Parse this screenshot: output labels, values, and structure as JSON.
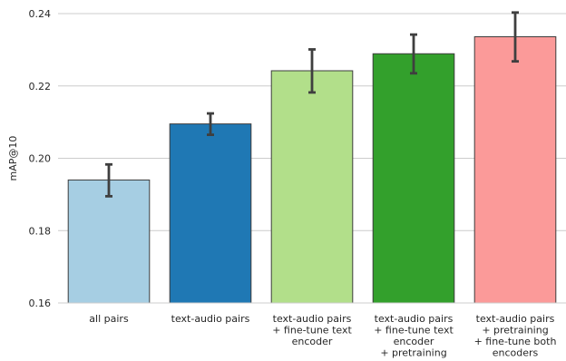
{
  "chart_data": {
    "type": "bar",
    "title": "",
    "xlabel": "",
    "ylabel": "mAP@10",
    "ylim": [
      0.16,
      0.24
    ],
    "yticks": [
      "0.16",
      "0.18",
      "0.20",
      "0.22",
      "0.24"
    ],
    "grid": "horizontal",
    "categories": [
      [
        "all pairs"
      ],
      [
        "text-audio pairs"
      ],
      [
        "text-audio pairs",
        "+ fine-tune text",
        "encoder"
      ],
      [
        "text-audio pairs",
        "+ fine-tune text",
        "encoder",
        "+ pretraining"
      ],
      [
        "text-audio pairs",
        "+ pretraining",
        "+ fine-tune both",
        "encoders"
      ]
    ],
    "values": [
      0.194,
      0.2095,
      0.2242,
      0.2289,
      0.2336
    ],
    "error_low": [
      0.1895,
      0.2065,
      0.2182,
      0.2235,
      0.2268
    ],
    "error_high": [
      0.1983,
      0.2124,
      0.2301,
      0.2342,
      0.2403
    ],
    "colors": [
      "#a6cee3",
      "#1f78b4",
      "#b2df8a",
      "#33a02c",
      "#fb9a99"
    ]
  }
}
